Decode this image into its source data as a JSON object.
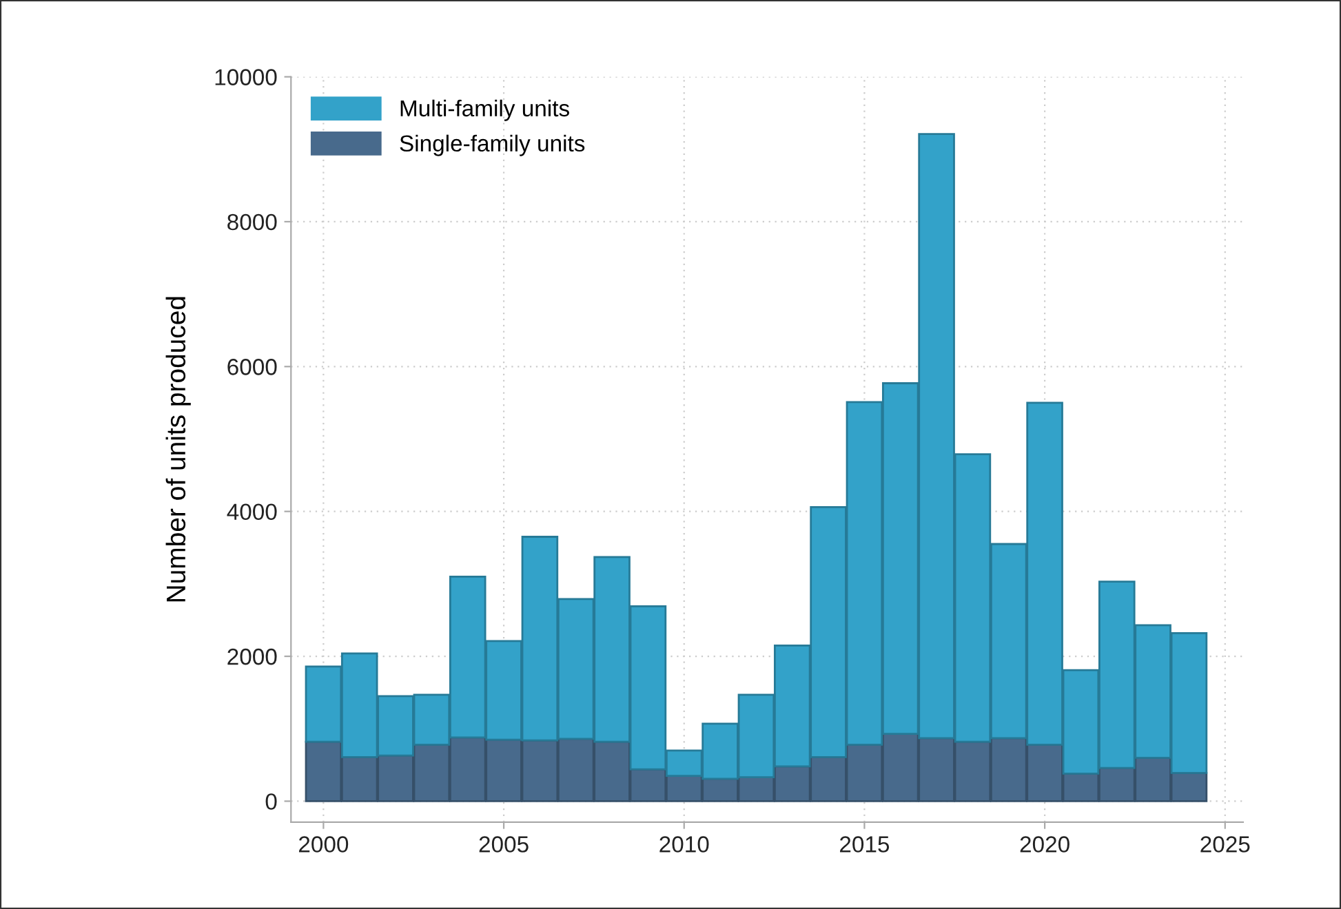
{
  "chart_data": {
    "type": "bar",
    "ylabel": "Number of units produced",
    "x": [
      2000,
      2001,
      2002,
      2003,
      2004,
      2005,
      2006,
      2007,
      2008,
      2009,
      2010,
      2011,
      2012,
      2013,
      2014,
      2015,
      2016,
      2017,
      2018,
      2019,
      2020,
      2021,
      2022,
      2023,
      2024
    ],
    "series": [
      {
        "name": "Single-family units",
        "color": "#486a8c",
        "values": [
          820,
          610,
          630,
          780,
          880,
          850,
          840,
          860,
          820,
          440,
          350,
          310,
          330,
          480,
          610,
          780,
          930,
          870,
          820,
          870,
          780,
          380,
          460,
          600,
          390
        ]
      },
      {
        "name": "Multi-family units",
        "color": "#33a2c9",
        "values": [
          1040,
          1430,
          820,
          690,
          2220,
          1360,
          2810,
          1930,
          2550,
          2250,
          350,
          760,
          1140,
          1670,
          3450,
          4730,
          4840,
          8340,
          3970,
          2680,
          4720,
          1430,
          2570,
          1830,
          1930
        ]
      }
    ],
    "stacked": true,
    "xlim": [
      1999.1,
      2025.5
    ],
    "xticks": [
      2000,
      2005,
      2010,
      2015,
      2020,
      2025
    ],
    "ylim": [
      -290,
      10000
    ],
    "yticks": [
      0,
      2000,
      4000,
      6000,
      8000,
      10000
    ],
    "grid": true,
    "legend": "top left"
  }
}
